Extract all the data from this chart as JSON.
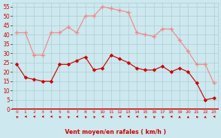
{
  "x": [
    0,
    1,
    2,
    3,
    4,
    5,
    6,
    7,
    8,
    9,
    10,
    11,
    12,
    13,
    14,
    15,
    16,
    17,
    18,
    19,
    20,
    21,
    22,
    23
  ],
  "wind_avg": [
    24,
    17,
    16,
    15,
    15,
    24,
    24,
    26,
    28,
    21,
    22,
    29,
    27,
    25,
    22,
    21,
    21,
    23,
    20,
    22,
    20,
    14,
    5,
    6
  ],
  "wind_gust": [
    41,
    41,
    29,
    29,
    41,
    41,
    44,
    41,
    50,
    50,
    55,
    54,
    53,
    52,
    41,
    40,
    39,
    43,
    43,
    37,
    31,
    24,
    24,
    14
  ],
  "arrow_angles_deg": [
    225,
    270,
    270,
    270,
    270,
    225,
    225,
    270,
    225,
    225,
    270,
    225,
    270,
    270,
    270,
    225,
    225,
    225,
    270,
    180,
    180,
    225,
    180,
    270
  ],
  "bg_color": "#cde8ee",
  "grid_color": "#aaccd4",
  "line_avg_color": "#cc0000",
  "line_gust_color": "#ee8888",
  "xlabel": "Vent moyen/en rafales ( km/h )",
  "xlabel_color": "#cc0000",
  "tick_color": "#cc0000",
  "ylim": [
    0,
    57
  ],
  "yticks": [
    0,
    5,
    10,
    15,
    20,
    25,
    30,
    35,
    40,
    45,
    50,
    55
  ],
  "arrow_color": "#cc0000"
}
